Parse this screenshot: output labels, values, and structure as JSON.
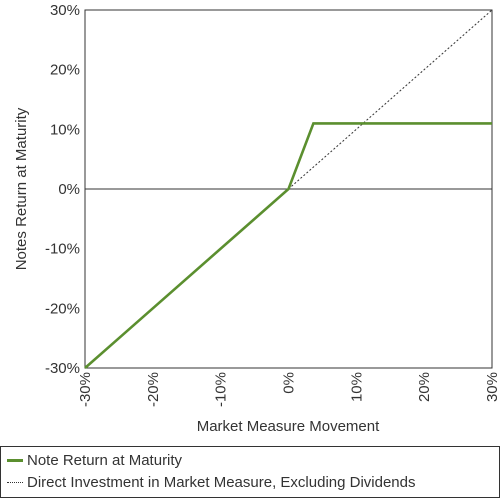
{
  "chart_data": {
    "type": "line",
    "title": "",
    "xlabel": "Market Measure Movement",
    "ylabel": "Notes Return at Maturity",
    "xlim": [
      -30,
      30
    ],
    "ylim": [
      -30,
      30
    ],
    "x_ticks": [
      "-30%",
      "-20%",
      "-10%",
      "0%",
      "10%",
      "20%",
      "30%"
    ],
    "y_ticks": [
      "30%",
      "20%",
      "10%",
      "0%",
      "-10%",
      "-20%",
      "-30%"
    ],
    "grid": false,
    "legend_placement": "bottom",
    "series": [
      {
        "name": "Note Return at Maturity",
        "style": "solid",
        "color": "#5b8f2f",
        "x": [
          -30,
          0,
          3.67,
          30
        ],
        "y": [
          -30,
          0,
          11,
          11
        ]
      },
      {
        "name": "Direct Investment in Market Measure, Excluding Dividends",
        "style": "dotted",
        "color": "#333333",
        "x": [
          0,
          30
        ],
        "y": [
          0,
          30
        ]
      }
    ]
  }
}
